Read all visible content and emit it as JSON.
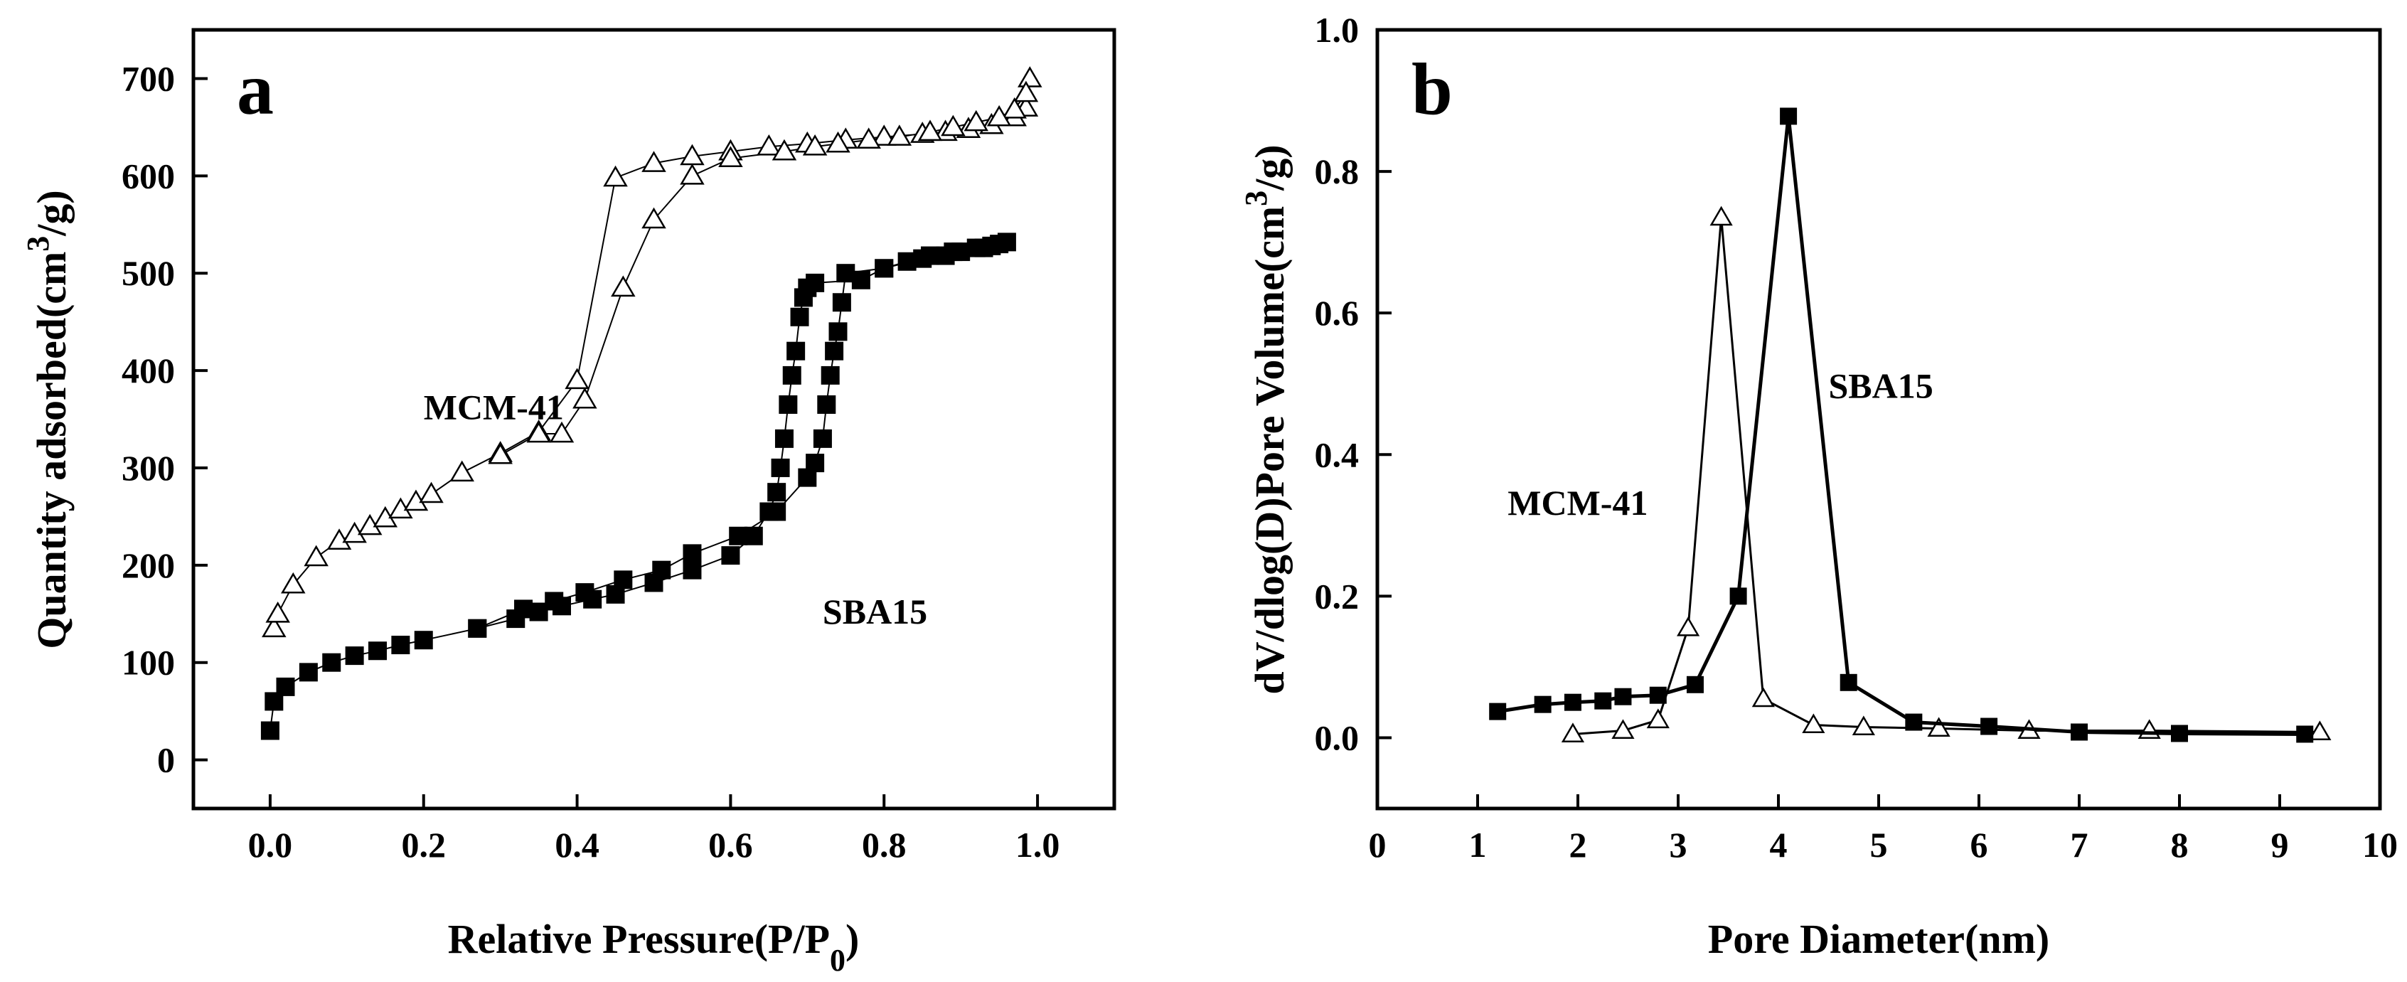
{
  "chart_data": [
    {
      "panel": "a",
      "type": "line",
      "xlabel": "Relative Pressure(P/P0)",
      "xlabel_main": "Relative Pressure(P/P",
      "xlabel_sub": "0",
      "xlabel_tail": ")",
      "ylabel": "Quantity adsorbed(cm3/g)",
      "ylabel_main": "Quantity adsorbed(cm",
      "ylabel_sup": "3",
      "ylabel_tail": "/g)",
      "xlim": [
        -0.1,
        1.1
      ],
      "ylim": [
        -50,
        750
      ],
      "xticks": [
        "0.0",
        "0.2",
        "0.4",
        "0.6",
        "0.8",
        "1.0"
      ],
      "yticks": [
        "0",
        "100",
        "200",
        "300",
        "400",
        "500",
        "600",
        "700"
      ],
      "grid": false,
      "series": [
        {
          "name": "MCM-41",
          "marker": "open-triangle",
          "label_pos": [
            0.2,
            350
          ],
          "x": [
            0.005,
            0.01,
            0.03,
            0.06,
            0.09,
            0.11,
            0.13,
            0.15,
            0.17,
            0.19,
            0.21,
            0.25,
            0.3,
            0.35,
            0.4,
            0.45,
            0.5,
            0.55,
            0.6,
            0.65,
            0.7,
            0.75,
            0.8,
            0.85,
            0.88,
            0.91,
            0.94,
            0.97,
            0.985,
            0.99,
            0.985,
            0.97,
            0.95,
            0.92,
            0.89,
            0.86,
            0.82,
            0.78,
            0.74,
            0.71,
            0.67,
            0.6,
            0.55,
            0.5,
            0.46,
            0.41,
            0.38,
            0.35,
            0.3
          ],
          "values": [
            135,
            150,
            180,
            208,
            225,
            232,
            240,
            248,
            257,
            265,
            273,
            295,
            315,
            337,
            390,
            598,
            613,
            620,
            625,
            630,
            633,
            637,
            640,
            643,
            645,
            648,
            652,
            660,
            670,
            700,
            685,
            668,
            660,
            655,
            650,
            645,
            640,
            637,
            633,
            630,
            625,
            618,
            600,
            555,
            485,
            370,
            335,
            335,
            313
          ]
        },
        {
          "name": "SBA15",
          "marker": "filled-square",
          "label_pos": [
            0.72,
            140
          ],
          "x": [
            0.0,
            0.005,
            0.02,
            0.05,
            0.08,
            0.11,
            0.14,
            0.17,
            0.2,
            0.27,
            0.32,
            0.35,
            0.38,
            0.42,
            0.45,
            0.5,
            0.55,
            0.6,
            0.63,
            0.65,
            0.66,
            0.665,
            0.67,
            0.675,
            0.68,
            0.685,
            0.69,
            0.695,
            0.7,
            0.71,
            0.77,
            0.8,
            0.83,
            0.86,
            0.89,
            0.92,
            0.94,
            0.96,
            0.95,
            0.93,
            0.9,
            0.88,
            0.85,
            0.8,
            0.75,
            0.745,
            0.74,
            0.735,
            0.73,
            0.725,
            0.72,
            0.71,
            0.7,
            0.66,
            0.61,
            0.55,
            0.51,
            0.46,
            0.41,
            0.37,
            0.33,
            0.27
          ],
          "values": [
            30,
            60,
            75,
            90,
            100,
            107,
            112,
            118,
            123,
            135,
            145,
            152,
            158,
            165,
            170,
            182,
            195,
            210,
            230,
            255,
            275,
            300,
            330,
            365,
            395,
            420,
            455,
            475,
            485,
            490,
            493,
            505,
            512,
            518,
            522,
            526,
            528,
            532,
            530,
            526,
            522,
            518,
            515,
            505,
            500,
            470,
            440,
            420,
            395,
            365,
            330,
            305,
            290,
            255,
            230,
            212,
            195,
            185,
            172,
            163,
            155,
            135
          ]
        }
      ]
    },
    {
      "panel": "b",
      "type": "line",
      "xlabel": "Pore Diameter(nm)",
      "ylabel": "dV/dlog(D)Pore Volume(cm3/g)",
      "ylabel_main": "dV/dlog(D)Pore Volume(cm",
      "ylabel_sup": "3",
      "ylabel_tail": "/g)",
      "xlim": [
        0,
        10
      ],
      "ylim": [
        -0.1,
        1.0
      ],
      "xticks": [
        "0",
        "1",
        "2",
        "3",
        "4",
        "5",
        "6",
        "7",
        "8",
        "9",
        "10"
      ],
      "yticks": [
        "0.0",
        "0.2",
        "0.4",
        "0.6",
        "0.8",
        "1.0"
      ],
      "grid": false,
      "series": [
        {
          "name": "MCM-41",
          "marker": "open-triangle",
          "label_pos": [
            1.3,
            0.315
          ],
          "x": [
            1.95,
            2.45,
            2.8,
            3.1,
            3.43,
            3.85,
            4.35,
            4.85,
            5.6,
            6.5,
            7.7,
            9.4
          ],
          "values": [
            0.005,
            0.01,
            0.025,
            0.155,
            0.735,
            0.055,
            0.018,
            0.015,
            0.013,
            0.01,
            0.01,
            0.008
          ]
        },
        {
          "name": "SBA15",
          "marker": "filled-square",
          "label_pos": [
            4.5,
            0.48
          ],
          "x": [
            1.2,
            1.65,
            1.95,
            2.25,
            2.45,
            2.8,
            3.17,
            3.6,
            4.1,
            4.7,
            5.35,
            6.1,
            7.0,
            8.0,
            9.25
          ],
          "values": [
            0.037,
            0.047,
            0.05,
            0.052,
            0.058,
            0.06,
            0.075,
            0.2,
            0.878,
            0.078,
            0.022,
            0.016,
            0.008,
            0.006,
            0.005
          ]
        }
      ]
    }
  ]
}
